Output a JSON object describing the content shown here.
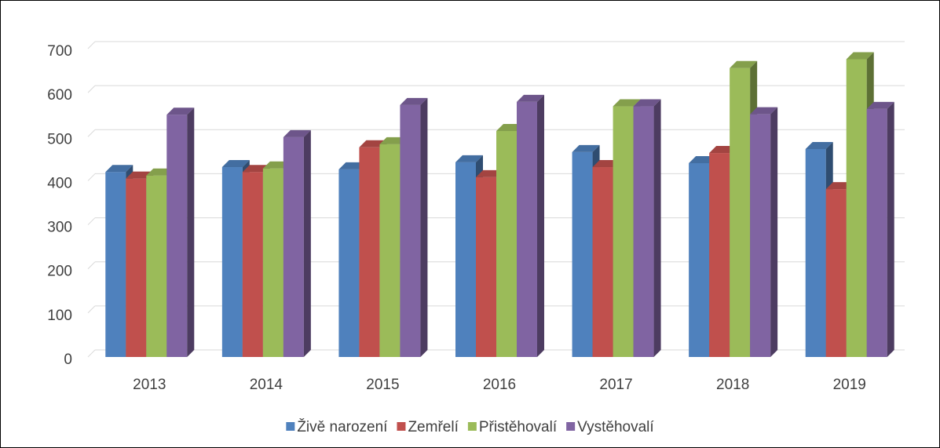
{
  "chart_data": {
    "type": "bar3d",
    "categories": [
      "2013",
      "2014",
      "2015",
      "2016",
      "2017",
      "2018",
      "2019"
    ],
    "series": [
      {
        "name": "Živě narození",
        "color": "#4f81bd",
        "values": [
          420,
          431,
          426,
          442,
          465,
          440,
          472
        ]
      },
      {
        "name": "Zemřelí",
        "color": "#c0504d",
        "values": [
          405,
          420,
          476,
          408,
          431,
          463,
          381
        ]
      },
      {
        "name": "Přistěhovalí",
        "color": "#9bbb59",
        "values": [
          412,
          428,
          483,
          513,
          569,
          656,
          676
        ]
      },
      {
        "name": "Vystěhovalí",
        "color": "#8064a2",
        "values": [
          550,
          499,
          572,
          579,
          569,
          551,
          563
        ]
      }
    ],
    "ylim": [
      0,
      700
    ],
    "yticks": [
      0,
      100,
      200,
      300,
      400,
      500,
      600,
      700
    ],
    "grid": true,
    "legend": "bottom"
  }
}
